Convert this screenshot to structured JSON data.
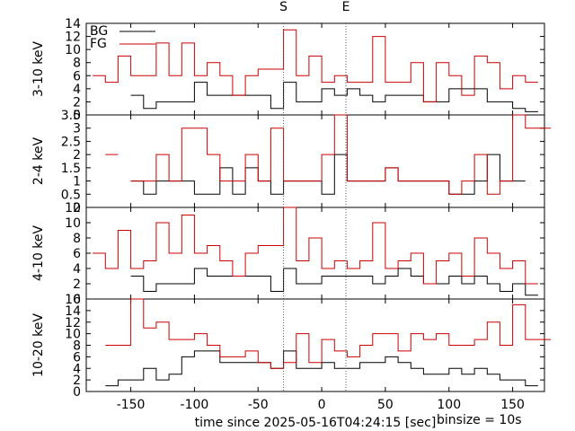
{
  "chart_data": {
    "type": "line",
    "step": true,
    "x_label": "time since 2025-05-16T04:24:15 [sec]",
    "binsize_label": "binsize = 10s",
    "x_range": [
      -185,
      175
    ],
    "x_ticks": [
      -150,
      -100,
      -50,
      0,
      50,
      100,
      150
    ],
    "markers": [
      {
        "label": "S",
        "x": -30
      },
      {
        "label": "E",
        "x": 19
      }
    ],
    "legend": {
      "placement": "top-left",
      "entries": [
        {
          "name": "BG",
          "color": "#000000"
        },
        {
          "name": "FG",
          "color": "#cc0000"
        }
      ]
    },
    "colors": {
      "BG": "#000000",
      "FG": "#cc0000"
    },
    "x_bins": [
      -180,
      -170,
      -160,
      -150,
      -140,
      -130,
      -120,
      -110,
      -100,
      -90,
      -80,
      -70,
      -60,
      -50,
      -40,
      -30,
      -20,
      -10,
      0,
      10,
      20,
      30,
      40,
      50,
      60,
      70,
      80,
      90,
      100,
      110,
      120,
      130,
      140,
      150,
      160,
      170
    ],
    "panels": [
      {
        "ylabel": "3-10 keV",
        "ylim": [
          0,
          14
        ],
        "yticks": [
          0,
          2,
          4,
          6,
          8,
          10,
          12,
          14
        ],
        "series": [
          {
            "name": "BG",
            "values": [
              null,
              null,
              null,
              3,
              1,
              2,
              2,
              2,
              5,
              3,
              3,
              3,
              3,
              3,
              1,
              5,
              2,
              2,
              4,
              3,
              4,
              3,
              2,
              3,
              3,
              3,
              2,
              2,
              4,
              4,
              4,
              2,
              2,
              1,
              0.5,
              null
            ]
          },
          {
            "name": "FG",
            "values": [
              6,
              5,
              9,
              6,
              6,
              11,
              6,
              11,
              6,
              8,
              6,
              3,
              6,
              7,
              7,
              13,
              6,
              9,
              5,
              6,
              5,
              5,
              12,
              5,
              5,
              8,
              2,
              8,
              6,
              3,
              9,
              8,
              4,
              6,
              5,
              null
            ]
          }
        ]
      },
      {
        "ylabel": "2-4 keV",
        "ylim": [
          0,
          3.5
        ],
        "yticks": [
          0,
          0.5,
          1,
          1.5,
          2,
          2.5,
          3,
          3.5
        ],
        "series": [
          {
            "name": "BG",
            "values": [
              null,
              null,
              null,
              1,
              0.5,
              1,
              1,
              1,
              0.5,
              0.5,
              1.5,
              0.5,
              1.5,
              1,
              0.5,
              1,
              1,
              1,
              0.5,
              2,
              1,
              1,
              1,
              1.5,
              1,
              1,
              1,
              1,
              0.5,
              0.5,
              1,
              2,
              1,
              1,
              null,
              null
            ]
          },
          {
            "name": "FG",
            "values": [
              null,
              2,
              null,
              1,
              1,
              2,
              1,
              3,
              3,
              2,
              1,
              1,
              2,
              1,
              3,
              1,
              1,
              1,
              2,
              4,
              1,
              1,
              1,
              1.5,
              1,
              1,
              1,
              1,
              0.5,
              1,
              2,
              0.5,
              1,
              4,
              3,
              3
            ]
          }
        ]
      },
      {
        "ylabel": "4-10 keV",
        "ylim": [
          0,
          12
        ],
        "yticks": [
          0,
          2,
          4,
          6,
          8,
          10,
          12
        ],
        "series": [
          {
            "name": "BG",
            "values": [
              null,
              null,
              null,
              3,
              1,
              2,
              2,
              2,
              4,
              3,
              3,
              3,
              3,
              3,
              1,
              4,
              2,
              2,
              3,
              3,
              3,
              3,
              2,
              3,
              4,
              3,
              2,
              2,
              3,
              2,
              3,
              2,
              1,
              2,
              0.5,
              null
            ]
          },
          {
            "name": "FG",
            "values": [
              6,
              4,
              9,
              4,
              5,
              10,
              6,
              11,
              6,
              7,
              5,
              3,
              6,
              7,
              7,
              13,
              5,
              8,
              4,
              5,
              4,
              5,
              10,
              4,
              5,
              6,
              2,
              5,
              6,
              3,
              8,
              6,
              4,
              5,
              2,
              null
            ]
          }
        ]
      },
      {
        "ylabel": "10-20 keV",
        "ylim": [
          0,
          16
        ],
        "yticks": [
          0,
          2,
          4,
          6,
          8,
          10,
          12,
          14,
          16
        ],
        "series": [
          {
            "name": "BG",
            "values": [
              null,
              1,
              2,
              2,
              4,
              2,
              3,
              6,
              7,
              7,
              5,
              5,
              5,
              5,
              4,
              7,
              4,
              4,
              5,
              4,
              4,
              5,
              5,
              6,
              5,
              4,
              3,
              3,
              4,
              3,
              4,
              3,
              2,
              2,
              1,
              null
            ]
          },
          {
            "name": "FG",
            "values": [
              null,
              8,
              8,
              16,
              11,
              12,
              9,
              9,
              10,
              8,
              6,
              6,
              7,
              5,
              4,
              5,
              10,
              5,
              9,
              7,
              6,
              8,
              10,
              10,
              7,
              10,
              9,
              10,
              8,
              8,
              9,
              12,
              8,
              15,
              9,
              9
            ]
          }
        ]
      }
    ]
  }
}
